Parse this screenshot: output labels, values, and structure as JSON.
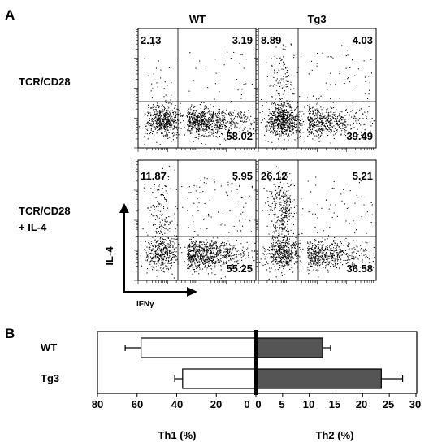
{
  "panel_a": {
    "label": "A",
    "columns": [
      "WT",
      "Tg3"
    ],
    "rows": [
      {
        "label_lines": [
          "TCR/CD28"
        ]
      },
      {
        "label_lines": [
          "TCR/CD28",
          "+ IL-4"
        ]
      }
    ],
    "y_axis_label": "IL-4",
    "x_axis_label": "IFNγ",
    "plots": [
      {
        "row": 0,
        "col": 0,
        "quadrants": {
          "upper_left": "2.13",
          "upper_right": "3.19",
          "lower_right": "58.02"
        }
      },
      {
        "row": 0,
        "col": 1,
        "quadrants": {
          "upper_left": "8.89",
          "upper_right": "4.03",
          "lower_right": "39.49"
        }
      },
      {
        "row": 1,
        "col": 0,
        "quadrants": {
          "upper_left": "11.87",
          "upper_right": "5.95",
          "lower_right": "55.25"
        }
      },
      {
        "row": 1,
        "col": 1,
        "quadrants": {
          "upper_left": "26.12",
          "upper_right": "5.21",
          "lower_right": "36.58"
        }
      }
    ]
  },
  "panel_b": {
    "label": "B",
    "categories": [
      "WT",
      "Tg3"
    ],
    "left_ticks": [
      "80",
      "60",
      "40",
      "20",
      "0"
    ],
    "right_ticks": [
      "0",
      "5",
      "10",
      "15",
      "20",
      "25",
      "30"
    ],
    "left_label": "Th1 (%)",
    "right_label": "Th2 (%)",
    "colors": {
      "th1_fill": "#ffffff",
      "th2_fill": "#555555"
    }
  },
  "chart_data": {
    "type": "bar",
    "categories": [
      "WT",
      "Tg3"
    ],
    "series": [
      {
        "name": "Th1 (%)",
        "values": [
          58,
          37
        ],
        "errors": [
          8,
          4
        ],
        "xlim": [
          0,
          80
        ]
      },
      {
        "name": "Th2 (%)",
        "values": [
          12.5,
          23.5
        ],
        "errors": [
          1.5,
          4
        ],
        "xlim": [
          0,
          30
        ]
      }
    ],
    "left_label": "Th1 (%)",
    "right_label": "Th2 (%)"
  }
}
